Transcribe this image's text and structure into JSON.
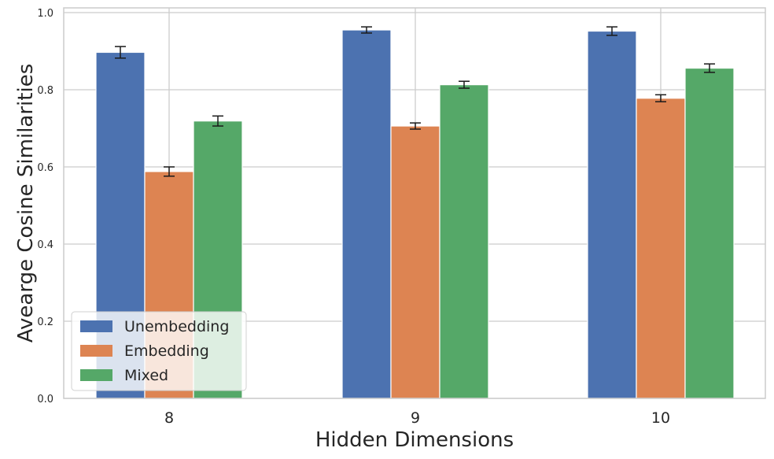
{
  "chart_data": {
    "type": "bar",
    "title": "",
    "xlabel": "Hidden Dimensions",
    "ylabel": "Avearge Cosine Similarities",
    "categories": [
      "8",
      "9",
      "10"
    ],
    "ylim": [
      0,
      1.0
    ],
    "yticks": [
      0.0,
      0.2,
      0.4,
      0.6,
      0.8,
      1.0
    ],
    "ytick_labels": [
      "0.0",
      "0.2",
      "0.4",
      "0.6",
      "0.8",
      "1.0"
    ],
    "grid": true,
    "legend_position": "lower-left",
    "series": [
      {
        "name": "Unembedding",
        "color": "#4c72b0",
        "values": [
          0.897,
          0.955,
          0.952
        ],
        "errors": [
          0.015,
          0.008,
          0.011
        ]
      },
      {
        "name": "Embedding",
        "color": "#dd8452",
        "values": [
          0.588,
          0.706,
          0.778
        ],
        "errors": [
          0.012,
          0.008,
          0.009
        ]
      },
      {
        "name": "Mixed",
        "color": "#55a868",
        "values": [
          0.719,
          0.813,
          0.856
        ],
        "errors": [
          0.013,
          0.009,
          0.011
        ]
      }
    ]
  }
}
